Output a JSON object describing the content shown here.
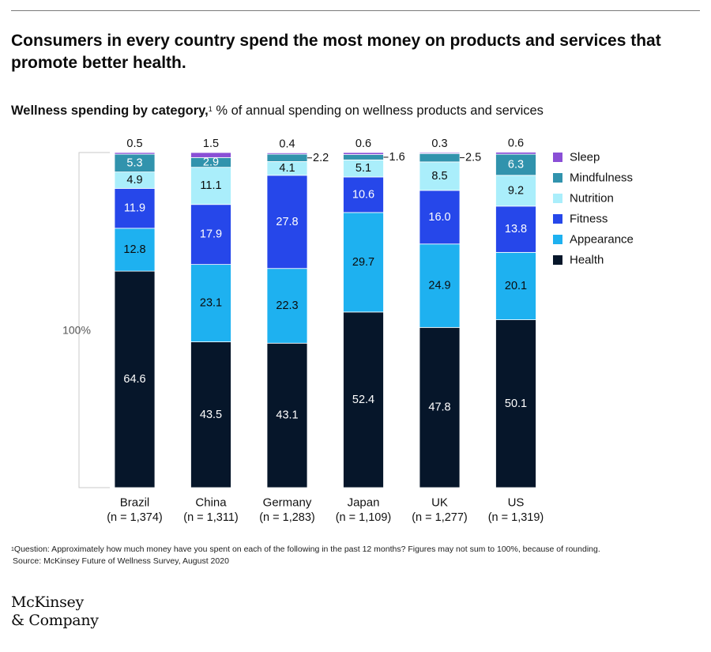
{
  "header": {
    "title": "Consumers in every country spend the most money on products and services that promote better health.",
    "subtitle_bold": "Wellness spending by category,",
    "subtitle_sup": "1",
    "subtitle_rest": " % of annual spending on wellness products and services"
  },
  "chart_data": {
    "type": "bar",
    "stacked": true,
    "title": "Wellness spending by category",
    "ylabel": "% of annual spending on wellness products and services",
    "total_label": "100%",
    "ylim": [
      0,
      100
    ],
    "categories": [
      "Brazil",
      "China",
      "Germany",
      "Japan",
      "UK",
      "US"
    ],
    "sample_sizes": [
      "(n = 1,374)",
      "(n = 1,311)",
      "(n = 1,283)",
      "(n = 1,109)",
      "(n = 1,277)",
      "(n = 1,319)"
    ],
    "series": [
      {
        "name": "Health",
        "color": "#06162a",
        "values": [
          64.6,
          43.5,
          43.1,
          52.4,
          47.8,
          50.1
        ]
      },
      {
        "name": "Appearance",
        "color": "#1eb1f0",
        "values": [
          12.8,
          23.1,
          22.3,
          29.7,
          24.9,
          20.1
        ]
      },
      {
        "name": "Fitness",
        "color": "#2647ea",
        "values": [
          11.9,
          17.9,
          27.8,
          10.6,
          16.0,
          13.8
        ]
      },
      {
        "name": "Nutrition",
        "color": "#aaeefb",
        "values": [
          4.9,
          11.1,
          4.1,
          5.1,
          8.5,
          9.2
        ]
      },
      {
        "name": "Mindfulness",
        "color": "#3193ad",
        "values": [
          5.3,
          2.9,
          2.2,
          1.6,
          2.5,
          6.3
        ]
      },
      {
        "name": "Sleep",
        "color": "#8a4fd6",
        "values": [
          0.5,
          1.5,
          0.4,
          0.6,
          0.3,
          0.6
        ]
      }
    ],
    "value_labels": {
      "Health": [
        "64.6",
        "43.5",
        "43.1",
        "52.4",
        "47.8",
        "50.1"
      ],
      "Appearance": [
        "12.8",
        "23.1",
        "22.3",
        "29.7",
        "24.9",
        "20.1"
      ],
      "Fitness": [
        "11.9",
        "17.9",
        "27.8",
        "10.6",
        "16.0",
        "13.8"
      ],
      "Nutrition": [
        "4.9",
        "11.1",
        "4.1",
        "5.1",
        "8.5",
        "9.2"
      ],
      "Mindfulness": [
        "5.3",
        "2.9",
        "2.2",
        "1.6",
        "2.5",
        "6.3"
      ],
      "Sleep": [
        "0.5",
        "1.5",
        "0.4",
        "0.6",
        "0.3",
        "0.6"
      ]
    },
    "outside_labels": [
      {
        "category": "Germany",
        "series": "Mindfulness",
        "text": "2.2"
      },
      {
        "category": "Japan",
        "series": "Mindfulness",
        "text": "1.6"
      },
      {
        "category": "UK",
        "series": "Mindfulness",
        "text": "2.5"
      }
    ],
    "legend_order": [
      "Sleep",
      "Mindfulness",
      "Nutrition",
      "Fitness",
      "Appearance",
      "Health"
    ],
    "legend_position": "top-right"
  },
  "footnote": {
    "sup": "1",
    "line1": "Question: Approximately how much money have you spent on each of the following in the past 12 months? Figures may not sum to 100%, because of rounding.",
    "line2": "Source: McKinsey Future of Wellness Survey, August 2020"
  },
  "logo": {
    "line1": "McKinsey",
    "line2": "& Company"
  }
}
